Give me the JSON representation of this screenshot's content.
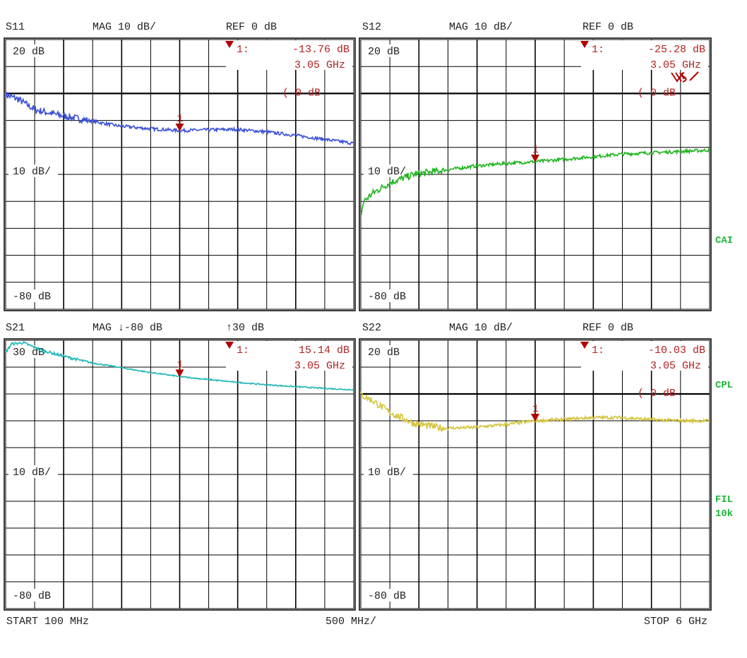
{
  "footer": {
    "start": "START  100 MHz",
    "div": "500 MHz/",
    "stop": "STOP 6 GHz"
  },
  "side_labels": {
    "cai": "CAI",
    "cpl": "CPL",
    "fil": "FIL",
    "fil_bw": "10k"
  },
  "colors": {
    "marker": "#b22222",
    "grid": "#000000",
    "side_labels": "#1fb53a"
  },
  "chart_data": [
    {
      "type": "line",
      "param": "S11",
      "format": "MAG 10 dB/",
      "ref": "REF 0 dB",
      "top_label": "20 dB",
      "scale_label": "10 dB/",
      "bottom_label": "-80 dB",
      "ylim": [
        -80,
        20
      ],
      "ref_level": 0,
      "ref_indicator": "( 0 dB",
      "xlim_ghz": [
        0.1,
        6.0
      ],
      "grid": true,
      "color": "#3b50d6",
      "marker": {
        "label": "1:",
        "value": "-13.76 dB",
        "freq": "3.05 GHz",
        "freq_ghz": 3.05,
        "db": -13.76
      },
      "x": [
        0.1,
        0.3,
        0.6,
        1.0,
        1.5,
        2.0,
        2.5,
        3.05,
        3.5,
        4.0,
        4.5,
        5.0,
        5.5,
        6.0
      ],
      "values": [
        -0.5,
        -2,
        -6,
        -8,
        -10,
        -12,
        -13,
        -13.76,
        -13.5,
        -13.3,
        -14.2,
        -15.5,
        -17,
        -18.5
      ]
    },
    {
      "type": "line",
      "param": "S12",
      "format": "MAG 10 dB/",
      "ref": "REF 0 dB",
      "top_label": "20 dB",
      "scale_label": "10 dB/",
      "bottom_label": "-80 dB",
      "ylim": [
        -80,
        20
      ],
      "ref_level": 0,
      "ref_indicator": "( 0 dB",
      "xlim_ghz": [
        0.1,
        6.0
      ],
      "grid": true,
      "color": "#1fb51f",
      "logo": "R&S",
      "marker": {
        "label": "1:",
        "value": "-25.28 dB",
        "freq": "3.05 GHz",
        "freq_ghz": 3.05,
        "db": -25.28
      },
      "x": [
        0.1,
        0.15,
        0.3,
        0.6,
        1.0,
        1.5,
        2.0,
        2.5,
        3.05,
        3.5,
        4.0,
        4.5,
        5.0,
        5.5,
        6.0
      ],
      "values": [
        -45,
        -40,
        -37,
        -33,
        -30,
        -28.5,
        -27,
        -26,
        -25.28,
        -24.5,
        -23.5,
        -22.5,
        -22,
        -21.5,
        -21
      ]
    },
    {
      "type": "line",
      "param": "S21",
      "format": "MAG ↓-80 dB",
      "ref": "↑30 dB",
      "top_label": "30 dB",
      "scale_label": "10 dB/",
      "bottom_label": "-80 dB",
      "ylim": [
        -80,
        30
      ],
      "ref_level": null,
      "ref_indicator": "",
      "xlim_ghz": [
        0.1,
        6.0
      ],
      "grid": true,
      "color": "#1fb5b5",
      "marker": {
        "label": "1:",
        "value": "15.14 dB",
        "freq": "3.05 GHz",
        "freq_ghz": 3.05,
        "db": 15.14
      },
      "x": [
        0.1,
        0.2,
        0.4,
        0.7,
        1.0,
        1.5,
        2.0,
        2.5,
        3.05,
        3.5,
        4.0,
        4.5,
        5.0,
        5.5,
        6.0
      ],
      "values": [
        25,
        28.5,
        29,
        26,
        24,
        21,
        19,
        17,
        15.14,
        14,
        12.8,
        11.8,
        11,
        10.3,
        9.7
      ]
    },
    {
      "type": "line",
      "param": "S22",
      "format": "MAG 10 dB/",
      "ref": "REF 0 dB",
      "top_label": "20 dB",
      "scale_label": "10 dB/",
      "bottom_label": "-80 dB",
      "ylim": [
        -80,
        20
      ],
      "ref_level": 0,
      "ref_indicator": "( 0 dB",
      "xlim_ghz": [
        0.1,
        6.0
      ],
      "grid": true,
      "color": "#d4c43a",
      "marker": {
        "label": "1:",
        "value": "-10.03 dB",
        "freq": "3.05 GHz",
        "freq_ghz": 3.05,
        "db": -10.03
      },
      "x": [
        0.1,
        0.3,
        0.6,
        1.0,
        1.5,
        2.0,
        2.5,
        3.05,
        3.5,
        4.0,
        4.5,
        5.0,
        5.5,
        6.0
      ],
      "values": [
        -0.3,
        -2.5,
        -7,
        -11,
        -12.8,
        -12.5,
        -11.5,
        -10.03,
        -9.5,
        -8.8,
        -8.8,
        -9.5,
        -10,
        -10
      ]
    }
  ]
}
